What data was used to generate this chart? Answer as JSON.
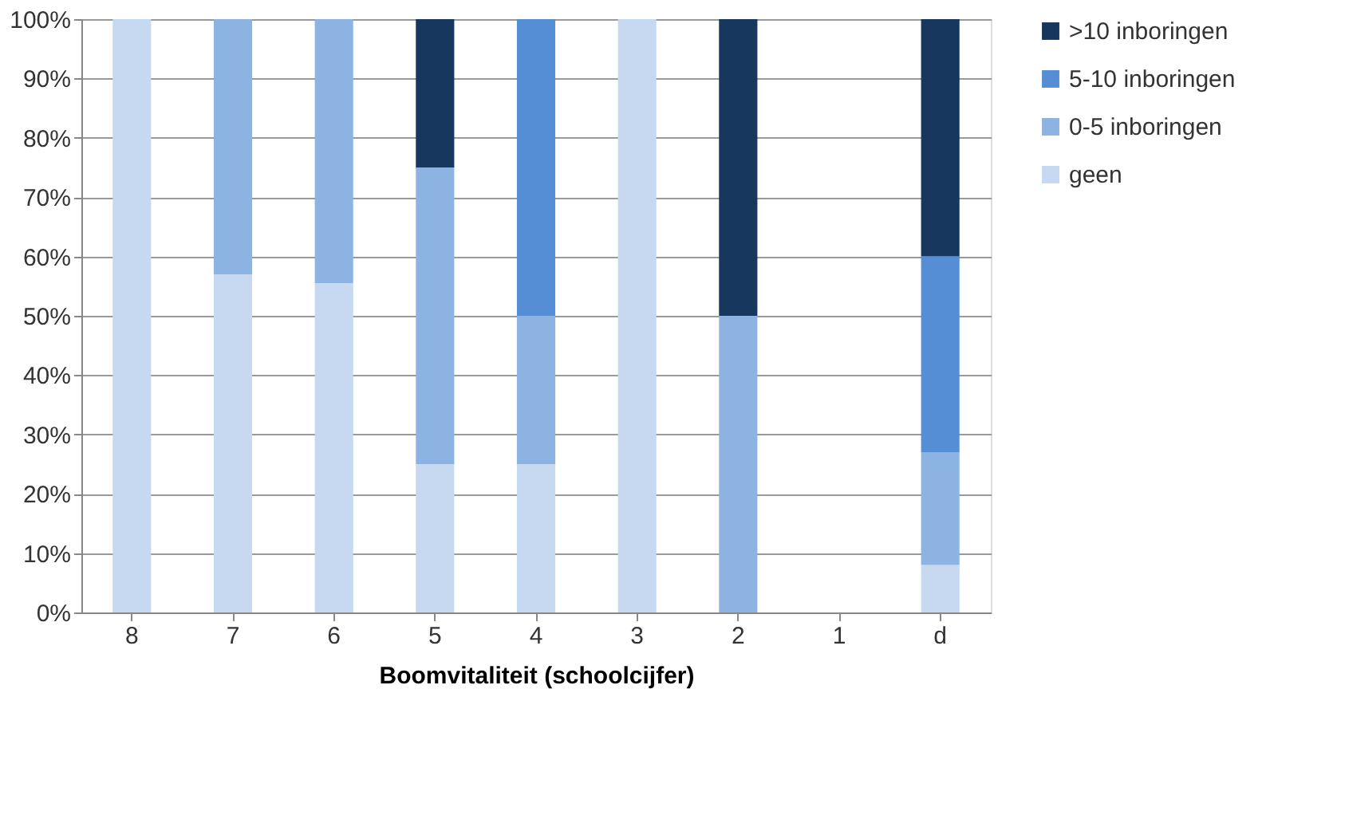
{
  "chart_data": {
    "type": "bar",
    "stacked": true,
    "xlabel": "Boomvitaliteit (schoolcijfer)",
    "categories": [
      "8",
      "7",
      "6",
      "5",
      "4",
      "3",
      "2",
      "1",
      "d"
    ],
    "series": [
      {
        "name": "geen",
        "color": "#c6d9f1",
        "values": [
          100,
          57,
          55.5,
          25,
          25,
          100,
          0,
          0,
          8
        ]
      },
      {
        "name": "0-5 inboringen",
        "color": "#8db3e2",
        "values": [
          0,
          43,
          44.5,
          50,
          25,
          0,
          50,
          0,
          19
        ]
      },
      {
        "name": "5-10 inboringen",
        "color": "#558ed5",
        "values": [
          0,
          0,
          0,
          0,
          50,
          0,
          0,
          0,
          33
        ]
      },
      {
        "name": ">10 inboringen",
        "color": "#17375e",
        "values": [
          0,
          0,
          0,
          25,
          0,
          0,
          50,
          0,
          40
        ]
      }
    ],
    "ylim": [
      0,
      100
    ],
    "yticks": [
      {
        "value": 0,
        "label": "0%"
      },
      {
        "value": 10,
        "label": "10%"
      },
      {
        "value": 20,
        "label": "20%"
      },
      {
        "value": 30,
        "label": "30%"
      },
      {
        "value": 40,
        "label": "40%"
      },
      {
        "value": 50,
        "label": "50%"
      },
      {
        "value": 60,
        "label": "60%"
      },
      {
        "value": 70,
        "label": "70%"
      },
      {
        "value": 80,
        "label": "80%"
      },
      {
        "value": 90,
        "label": "90%"
      },
      {
        "value": 100,
        "label": "100%"
      }
    ],
    "grid": "y",
    "legend": "right"
  }
}
